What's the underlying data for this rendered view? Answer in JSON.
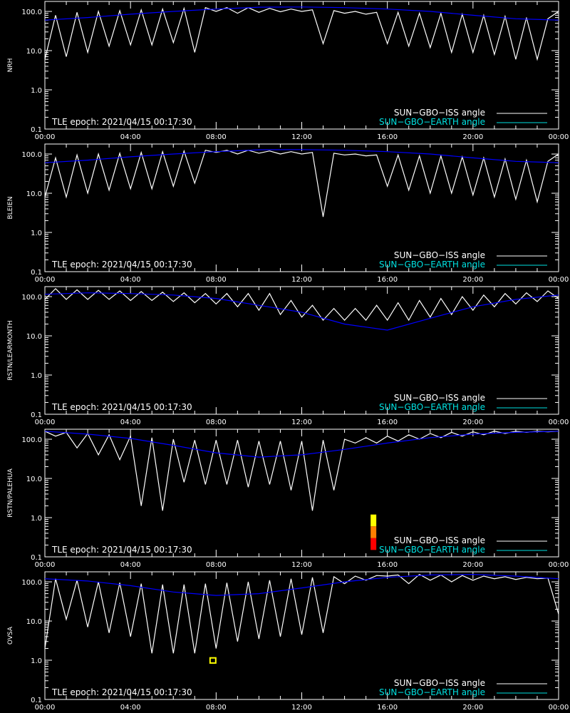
{
  "legend": {
    "iss_label": "SUN−GBO−ISS angle",
    "earth_label": "SUN−GBO−EARTH angle"
  },
  "colors": {
    "background": "#000000",
    "axes": "#ffffff",
    "iss_line": "#ffffff",
    "iss_shadow_line": "#808080",
    "earth_line_low": "#0000ff",
    "earth_line_high": "#00e0e0",
    "marker_yellow": "#ffff00",
    "marker_orange": "#ff8000",
    "marker_red": "#ff0000"
  },
  "chart_data": [
    {
      "type": "line",
      "ylabel": "NRH",
      "annotation": "TLE epoch: 2021/04/15 00:17:30",
      "x_ticks": [
        "00:00",
        "04:00",
        "08:00",
        "12:00",
        "16:00",
        "20:00",
        "00:00"
      ],
      "xlim_hours": [
        0,
        24
      ],
      "y_ticks": [
        "0.1",
        "1.0",
        "10.0",
        "100.0"
      ],
      "ylim": [
        0.1,
        180
      ],
      "yscale": "log",
      "series": [
        {
          "name": "SUN−GBO−ISS angle",
          "x": [
            0.0,
            0.5,
            1.0,
            1.5,
            2.0,
            2.5,
            3.0,
            3.5,
            4.0,
            4.5,
            5.0,
            5.5,
            6.0,
            6.5,
            7.0,
            7.5,
            8.0,
            8.5,
            9.0,
            9.5,
            10.0,
            10.5,
            11.0,
            11.5,
            12.0,
            12.5,
            13.0,
            13.5,
            14.0,
            14.5,
            15.0,
            15.5,
            16.0,
            16.5,
            17.0,
            17.5,
            18.0,
            18.5,
            19.0,
            19.5,
            20.0,
            20.5,
            21.0,
            21.5,
            22.0,
            22.5,
            23.0,
            23.5,
            24.0
          ],
          "values": [
            6.0,
            80.0,
            7.0,
            95.0,
            9.0,
            100.0,
            13.0,
            105.0,
            14.0,
            110.0,
            14.0,
            115.0,
            16.0,
            120.0,
            9.0,
            125.0,
            100.0,
            125.0,
            90.0,
            125.0,
            95.0,
            120.0,
            98.0,
            115.0,
            100.0,
            110.0,
            15.0,
            105.0,
            90.0,
            100.0,
            85.0,
            95.0,
            15.0,
            95.0,
            13.0,
            90.0,
            12.0,
            90.0,
            9.0,
            85.0,
            9.0,
            80.0,
            8.0,
            75.0,
            6.0,
            70.0,
            6.0,
            65.0,
            100.0
          ]
        },
        {
          "name": "SUN−GBO−EARTH angle",
          "x": [
            0.0,
            2.0,
            4.0,
            6.0,
            8.0,
            10.0,
            12.0,
            14.0,
            16.0,
            18.0,
            20.0,
            22.0,
            24.0
          ],
          "values": [
            60.0,
            70.0,
            85.0,
            100.0,
            115.0,
            128.0,
            130.0,
            125.0,
            115.0,
            100.0,
            80.0,
            65.0,
            60.0
          ]
        }
      ],
      "markers": []
    },
    {
      "type": "line",
      "ylabel": "BLEIEN",
      "annotation": "TLE epoch: 2021/04/15 00:17:30",
      "x_ticks": [
        "00:00",
        "04:00",
        "08:00",
        "12:00",
        "16:00",
        "20:00",
        "00:00"
      ],
      "xlim_hours": [
        0,
        24
      ],
      "y_ticks": [
        "0.1",
        "1.0",
        "10.0",
        "100.0"
      ],
      "ylim": [
        0.1,
        180
      ],
      "yscale": "log",
      "series": [
        {
          "name": "SUN−GBO−ISS angle",
          "x": [
            0.0,
            0.5,
            1.0,
            1.5,
            2.0,
            2.5,
            3.0,
            3.5,
            4.0,
            4.5,
            5.0,
            5.5,
            6.0,
            6.5,
            7.0,
            7.5,
            8.0,
            8.5,
            9.0,
            9.5,
            10.0,
            10.5,
            11.0,
            11.5,
            12.0,
            12.5,
            13.0,
            13.5,
            14.0,
            14.5,
            15.0,
            15.5,
            16.0,
            16.5,
            17.0,
            17.5,
            18.0,
            18.5,
            19.0,
            19.5,
            20.0,
            20.5,
            21.0,
            21.5,
            22.0,
            22.5,
            23.0,
            23.5,
            24.0
          ],
          "values": [
            8.0,
            80.0,
            8.0,
            95.0,
            10.0,
            100.0,
            12.0,
            105.0,
            13.0,
            110.0,
            13.0,
            115.0,
            15.0,
            120.0,
            18.0,
            125.0,
            110.0,
            125.0,
            100.0,
            125.0,
            105.0,
            120.0,
            100.0,
            115.0,
            100.0,
            110.0,
            2.5,
            105.0,
            95.0,
            100.0,
            90.0,
            95.0,
            15.0,
            95.0,
            12.0,
            90.0,
            10.0,
            90.0,
            10.0,
            85.0,
            9.0,
            80.0,
            8.0,
            75.0,
            7.0,
            70.0,
            6.0,
            65.0,
            100.0
          ]
        },
        {
          "name": "SUN−GBO−EARTH angle",
          "x": [
            0.0,
            2.0,
            4.0,
            6.0,
            8.0,
            10.0,
            12.0,
            14.0,
            16.0,
            18.0,
            20.0,
            22.0,
            24.0
          ],
          "values": [
            60.0,
            70.0,
            85.0,
            100.0,
            115.0,
            128.0,
            130.0,
            125.0,
            115.0,
            100.0,
            80.0,
            65.0,
            60.0
          ]
        }
      ],
      "markers": []
    },
    {
      "type": "line",
      "ylabel": "RSTN/LEARMONTH",
      "annotation": "TLE epoch: 2021/04/15 00:17:30",
      "x_ticks": [
        "00:00",
        "04:00",
        "08:00",
        "12:00",
        "16:00",
        "20:00",
        "00:00"
      ],
      "xlim_hours": [
        0,
        24
      ],
      "y_ticks": [
        "0.1",
        "1.0",
        "10.0",
        "100.0"
      ],
      "ylim": [
        0.1,
        180
      ],
      "yscale": "log",
      "series": [
        {
          "name": "SUN−GBO−ISS angle",
          "x": [
            0.0,
            0.5,
            1.0,
            1.5,
            2.0,
            2.5,
            3.0,
            3.5,
            4.0,
            4.5,
            5.0,
            5.5,
            6.0,
            6.5,
            7.0,
            7.5,
            8.0,
            8.5,
            9.0,
            9.5,
            10.0,
            10.5,
            11.0,
            11.5,
            12.0,
            12.5,
            13.0,
            13.5,
            14.0,
            14.5,
            15.0,
            15.5,
            16.0,
            16.5,
            17.0,
            17.5,
            18.0,
            18.5,
            19.0,
            19.5,
            20.0,
            20.5,
            21.0,
            21.5,
            22.0,
            22.5,
            23.0,
            23.5,
            24.0
          ],
          "values": [
            85.0,
            160.0,
            85.0,
            150.0,
            85.0,
            145.0,
            85.0,
            140.0,
            80.0,
            135.0,
            80.0,
            130.0,
            75.0,
            125.0,
            70.0,
            120.0,
            65.0,
            120.0,
            55.0,
            120.0,
            45.0,
            120.0,
            35.0,
            80.0,
            30.0,
            60.0,
            25.0,
            50.0,
            25.0,
            50.0,
            25.0,
            60.0,
            25.0,
            70.0,
            25.0,
            80.0,
            30.0,
            90.0,
            35.0,
            100.0,
            45.0,
            110.0,
            55.0,
            120.0,
            65.0,
            125.0,
            75.0,
            140.0,
            90.0
          ]
        },
        {
          "name": "SUN−GBO−EARTH angle",
          "x": [
            0.0,
            2.0,
            4.0,
            6.0,
            8.0,
            10.0,
            12.0,
            14.0,
            16.0,
            18.0,
            20.0,
            22.0,
            24.0
          ],
          "values": [
            115.0,
            125.0,
            120.0,
            110.0,
            90.0,
            60.0,
            40.0,
            20.0,
            14.0,
            28.0,
            55.0,
            85.0,
            110.0
          ]
        }
      ],
      "markers": []
    },
    {
      "type": "line",
      "ylabel": "RSTN/PALEHUA",
      "annotation": "TLE epoch: 2021/04/15 00:17:30",
      "x_ticks": [
        "00:00",
        "04:00",
        "08:00",
        "12:00",
        "16:00",
        "20:00",
        "00:00"
      ],
      "xlim_hours": [
        0,
        24
      ],
      "y_ticks": [
        "0.1",
        "1.0",
        "10.0",
        "100.0"
      ],
      "ylim": [
        0.1,
        180
      ],
      "yscale": "log",
      "series": [
        {
          "name": "SUN−GBO−ISS angle",
          "x": [
            0.0,
            0.5,
            1.0,
            1.5,
            2.0,
            2.5,
            3.0,
            3.5,
            4.0,
            4.5,
            5.0,
            5.5,
            6.0,
            6.5,
            7.0,
            7.5,
            8.0,
            8.5,
            9.0,
            9.5,
            10.0,
            10.5,
            11.0,
            11.5,
            12.0,
            12.5,
            13.0,
            13.5,
            14.0,
            14.5,
            15.0,
            15.5,
            16.0,
            16.5,
            17.0,
            17.5,
            18.0,
            18.5,
            19.0,
            19.5,
            20.0,
            20.5,
            21.0,
            21.5,
            22.0,
            22.5,
            23.0,
            23.5,
            24.0
          ],
          "values": [
            160.0,
            120.0,
            150.0,
            60.0,
            140.0,
            40.0,
            130.0,
            30.0,
            120.0,
            2.0,
            110.0,
            1.5,
            100.0,
            8.0,
            95.0,
            7.0,
            95.0,
            7.0,
            95.0,
            6.0,
            90.0,
            7.0,
            90.0,
            5.0,
            90.0,
            1.5,
            95.0,
            5.0,
            100.0,
            80.0,
            110.0,
            80.0,
            120.0,
            90.0,
            130.0,
            100.0,
            140.0,
            110.0,
            150.0,
            120.0,
            155.0,
            130.0,
            160.0,
            140.0,
            160.0,
            150.0,
            160.0,
            155.0,
            160.0
          ]
        },
        {
          "name": "SUN−GBO−EARTH angle",
          "x": [
            0.0,
            2.0,
            4.0,
            6.0,
            8.0,
            10.0,
            12.0,
            14.0,
            16.0,
            18.0,
            20.0,
            22.0,
            24.0
          ],
          "values": [
            160.0,
            135.0,
            105.0,
            70.0,
            45.0,
            35.0,
            40.0,
            55.0,
            80.0,
            110.0,
            135.0,
            150.0,
            160.0
          ]
        }
      ],
      "markers": [
        {
          "x": 15.35,
          "y_bottom": 0.6,
          "y_top": 1.2,
          "color": "#ffff00"
        },
        {
          "x": 15.35,
          "y_bottom": 0.3,
          "y_top": 0.6,
          "color": "#ff8000"
        },
        {
          "x": 15.35,
          "y_bottom": 0.15,
          "y_top": 0.3,
          "color": "#ff0000"
        }
      ]
    },
    {
      "type": "line",
      "ylabel": "OVSA",
      "annotation": "TLE epoch: 2021/04/15 00:17:30",
      "x_ticks": [
        "00:00",
        "04:00",
        "08:00",
        "12:00",
        "16:00",
        "20:00",
        "00:00"
      ],
      "xlim_hours": [
        0,
        24
      ],
      "y_ticks": [
        "0.1",
        "1.0",
        "10.0",
        "100.0"
      ],
      "ylim": [
        0.1,
        180
      ],
      "yscale": "log",
      "series": [
        {
          "name": "SUN−GBO−ISS angle",
          "x": [
            0.0,
            0.5,
            1.0,
            1.5,
            2.0,
            2.5,
            3.0,
            3.5,
            4.0,
            4.5,
            5.0,
            5.5,
            6.0,
            6.5,
            7.0,
            7.5,
            8.0,
            8.5,
            9.0,
            9.5,
            10.0,
            10.5,
            11.0,
            11.5,
            12.0,
            12.5,
            13.0,
            13.5,
            14.0,
            14.5,
            15.0,
            15.5,
            16.0,
            16.5,
            17.0,
            17.5,
            18.0,
            18.5,
            19.0,
            19.5,
            20.0,
            20.5,
            21.0,
            21.5,
            22.0,
            22.5,
            23.0,
            23.5,
            24.0
          ],
          "values": [
            2.0,
            120.0,
            11.0,
            110.0,
            7.0,
            100.0,
            5.0,
            95.0,
            4.0,
            90.0,
            1.5,
            85.0,
            1.5,
            85.0,
            1.5,
            90.0,
            2.0,
            95.0,
            3.0,
            100.0,
            3.5,
            110.0,
            4.0,
            120.0,
            4.5,
            130.0,
            5.0,
            135.0,
            90.0,
            140.0,
            110.0,
            145.0,
            140.0,
            150.0,
            90.0,
            155.0,
            110.0,
            150.0,
            100.0,
            145.0,
            110.0,
            140.0,
            120.0,
            135.0,
            115.0,
            130.0,
            120.0,
            125.0,
            15.0
          ]
        },
        {
          "name": "SUN−GBO−EARTH angle",
          "x": [
            0.0,
            2.0,
            4.0,
            6.0,
            8.0,
            10.0,
            12.0,
            14.0,
            16.0,
            18.0,
            20.0,
            22.0,
            24.0
          ],
          "values": [
            120.0,
            105.0,
            80.0,
            55.0,
            45.0,
            50.0,
            70.0,
            100.0,
            130.0,
            150.0,
            155.0,
            140.0,
            120.0
          ]
        }
      ],
      "markers": [
        {
          "x": 7.85,
          "y_bottom": 0.85,
          "y_top": 1.15,
          "color": "#ffff00",
          "style": "box"
        }
      ]
    }
  ]
}
